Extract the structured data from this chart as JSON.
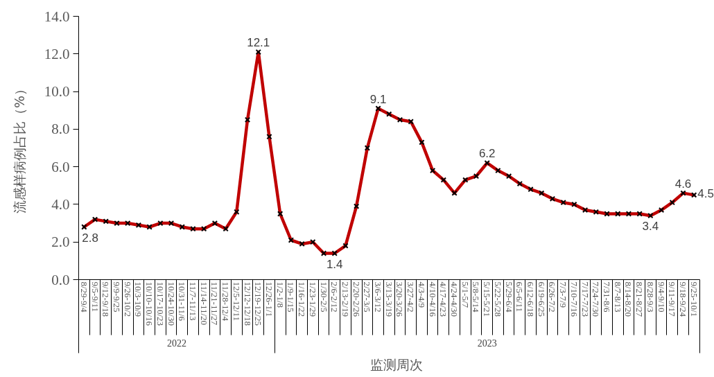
{
  "chart_data": {
    "type": "line",
    "xlabel": "监测周次",
    "ylabel": "流感样病例占比（%）",
    "categories": [
      "8/29-9/4",
      "9/5-9/11",
      "9/12-9/18",
      "9/9-9/25",
      "9/26-10/2",
      "10/3-10/9",
      "10/10-10/16",
      "10/17-10/23",
      "10/24-10/30",
      "10/31-11/6",
      "11/7-11/13",
      "11/14-11/20",
      "11/21-11/27",
      "11/28-12/4",
      "12/5-12/11",
      "12/12-12/18",
      "12/19-12/25",
      "12/26-1/1",
      "1/2-1/8",
      "1/9-1/15",
      "1/16-1/22",
      "1/23-1/29",
      "1/30-2/5",
      "2/6-2/12",
      "2/13-2/19",
      "2/20-2/26",
      "2/27-3/5",
      "3/6-3/12",
      "3/13-3/19",
      "3/20-3/26",
      "3/27-4/2",
      "4/3-4/9",
      "4/10-4/16",
      "4/17-4/23",
      "4/24-4/30",
      "5/1-5/7",
      "5/8-5/14",
      "5/15-5/21",
      "5/22-5/28",
      "5/29-6/4",
      "6/5-6/11",
      "6/12-6/18",
      "6/19-6/25",
      "6/26-7/2",
      "7/3-7/9",
      "7/10-7/16",
      "7/17-7/23",
      "7/24-7/30",
      "7/31-8/6",
      "8/7-8/13",
      "8/14-8/20",
      "8/21-8/27",
      "8/28-9/3",
      "9/4-9/10",
      "9/11-9/17",
      "9/18-9/24",
      "9/25-10/1"
    ],
    "series": [
      {
        "color": "#c00000",
        "values": [
          2.8,
          3.2,
          3.1,
          3.0,
          3.0,
          2.9,
          2.8,
          3.0,
          3.0,
          2.8,
          2.7,
          2.7,
          3.0,
          2.7,
          3.6,
          8.5,
          12.1,
          7.6,
          3.5,
          2.1,
          1.9,
          2.0,
          1.4,
          1.4,
          1.8,
          3.9,
          7.0,
          9.1,
          8.8,
          8.5,
          8.4,
          7.3,
          5.8,
          5.3,
          4.6,
          5.3,
          5.5,
          6.2,
          5.8,
          5.5,
          5.1,
          4.8,
          4.6,
          4.3,
          4.1,
          4.0,
          3.7,
          3.6,
          3.5,
          3.5,
          3.5,
          3.5,
          3.4,
          3.7,
          4.1,
          4.6,
          4.5
        ],
        "value_labels": [
          "2.8",
          null,
          null,
          null,
          null,
          null,
          null,
          null,
          null,
          null,
          null,
          null,
          null,
          null,
          null,
          null,
          "12.1",
          null,
          null,
          null,
          null,
          null,
          null,
          "1.4",
          null,
          null,
          null,
          "9.1",
          null,
          null,
          null,
          null,
          null,
          null,
          null,
          null,
          null,
          "6.2",
          null,
          null,
          null,
          null,
          null,
          null,
          null,
          null,
          null,
          null,
          null,
          null,
          null,
          null,
          "3.4",
          null,
          null,
          "4.6",
          "4.5"
        ]
      }
    ],
    "ylim": [
      0,
      14
    ],
    "yticks": [
      {
        "value": 0,
        "label": "0.0"
      },
      {
        "value": 2,
        "label": "2.0"
      },
      {
        "value": 4,
        "label": "4.0"
      },
      {
        "value": 6,
        "label": "6.0"
      },
      {
        "value": 8,
        "label": "8.0"
      },
      {
        "value": 10,
        "label": "10.0"
      },
      {
        "value": 12,
        "label": "12.0"
      },
      {
        "value": 14,
        "label": "14.0"
      }
    ],
    "annotations": [
      "2022",
      "2023"
    ],
    "marker": "cross",
    "line_style": "solid"
  }
}
